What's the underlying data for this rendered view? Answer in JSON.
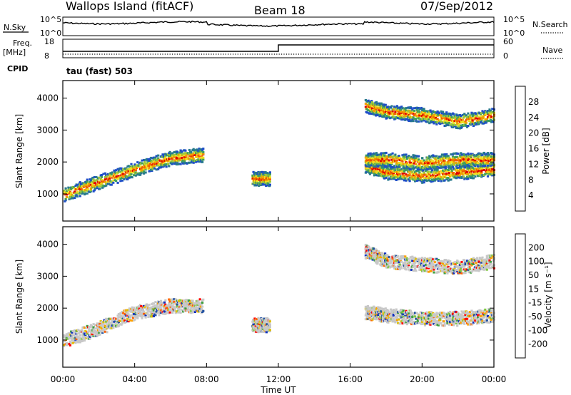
{
  "header": {
    "station": "Wallops Island (fitACF)",
    "beam": "Beam 18",
    "date": "07/Sep/2012"
  },
  "status_panels": {
    "nsky": {
      "label": "N.Sky",
      "ticks": [
        "10^5",
        "10^0"
      ]
    },
    "nsearch": {
      "label": "N.Search",
      "ticks": [
        "10^5",
        "10^0"
      ]
    },
    "freq": {
      "label_top": "Freq.",
      "label_unit": "[MHz]",
      "ticks": [
        "18",
        "8"
      ]
    },
    "nave": {
      "label": "Nave",
      "ticks": [
        "60",
        "0"
      ]
    },
    "cpid": {
      "label": "CPID",
      "value": "tau (fast) 503"
    }
  },
  "chart_data": [
    {
      "type": "heatmap",
      "name": "power",
      "ylabel": "Slant Range [km]",
      "y_ticks": [
        "4000",
        "3000",
        "2000",
        "1000"
      ],
      "y_tick_values": [
        4000,
        3000,
        2000,
        1000
      ],
      "ylim": [
        150,
        4550
      ],
      "xlim_hours": [
        0,
        24
      ],
      "colorbar": {
        "label": "Power [dB]",
        "ticks": [
          "28",
          "24",
          "20",
          "16",
          "12",
          "8",
          "4"
        ],
        "colors": [
          "#0000ff",
          "#1e4ec8",
          "#287a8c",
          "#3fa05a",
          "#9cc83c",
          "#f0e020",
          "#f0a000",
          "#f06000",
          "#e00000"
        ]
      },
      "echo_bands": [
        {
          "x": [
            0.0,
            2.0,
            4.0,
            6.0,
            7.8
          ],
          "y": [
            1000,
            1400,
            1800,
            2150,
            2250
          ]
        },
        {
          "x": [
            10.5,
            11.5
          ],
          "y": [
            1500,
            1500
          ]
        },
        {
          "x": [
            16.8,
            18.0,
            20.0,
            22.0,
            24.0
          ],
          "y": [
            1900,
            1700,
            1600,
            1700,
            1800
          ]
        },
        {
          "x": [
            16.8,
            18.0,
            20.0,
            22.0,
            24.0
          ],
          "y": [
            2100,
            2100,
            2000,
            2100,
            2100
          ]
        },
        {
          "x": [
            16.8,
            18.0,
            20.0,
            22.0,
            24.0
          ],
          "y": [
            3800,
            3600,
            3500,
            3300,
            3500
          ]
        }
      ]
    },
    {
      "type": "heatmap",
      "name": "velocity",
      "ylabel": "Slant Range [km]",
      "y_ticks": [
        "4000",
        "3000",
        "2000",
        "1000"
      ],
      "y_tick_values": [
        4000,
        3000,
        2000,
        1000
      ],
      "ylim": [
        150,
        4550
      ],
      "xlim_hours": [
        0,
        24
      ],
      "colorbar": {
        "label": "Velocity [m s⁻¹]",
        "ticks": [
          "200",
          "100",
          "50",
          "15",
          "-15",
          "-50",
          "-100",
          "-200"
        ],
        "colors": [
          "#ff0000",
          "#ff6000",
          "#ffa000",
          "#e0c000",
          "#c8c8c8",
          "#c8c8c8",
          "#80c840",
          "#40a040",
          "#2050a0",
          "#1030c0"
        ]
      },
      "echo_bands": [
        {
          "x": [
            0.0,
            2.0,
            4.0,
            6.0,
            7.8
          ],
          "y": [
            1000,
            1400,
            1900,
            2100,
            2100
          ]
        },
        {
          "x": [
            10.5,
            11.5
          ],
          "y": [
            1500,
            1500
          ]
        },
        {
          "x": [
            16.8,
            18.0,
            20.0,
            22.0,
            24.0
          ],
          "y": [
            1900,
            1800,
            1700,
            1700,
            1800
          ]
        },
        {
          "x": [
            16.8,
            18.0,
            20.0,
            22.0,
            24.0
          ],
          "y": [
            3800,
            3500,
            3400,
            3300,
            3500
          ]
        }
      ]
    }
  ],
  "x_axis": {
    "label": "Time UT",
    "ticks": [
      "00:00",
      "04:00",
      "08:00",
      "12:00",
      "16:00",
      "20:00",
      "00:00"
    ],
    "tick_hours": [
      0,
      4,
      8,
      12,
      16,
      20,
      24
    ]
  }
}
